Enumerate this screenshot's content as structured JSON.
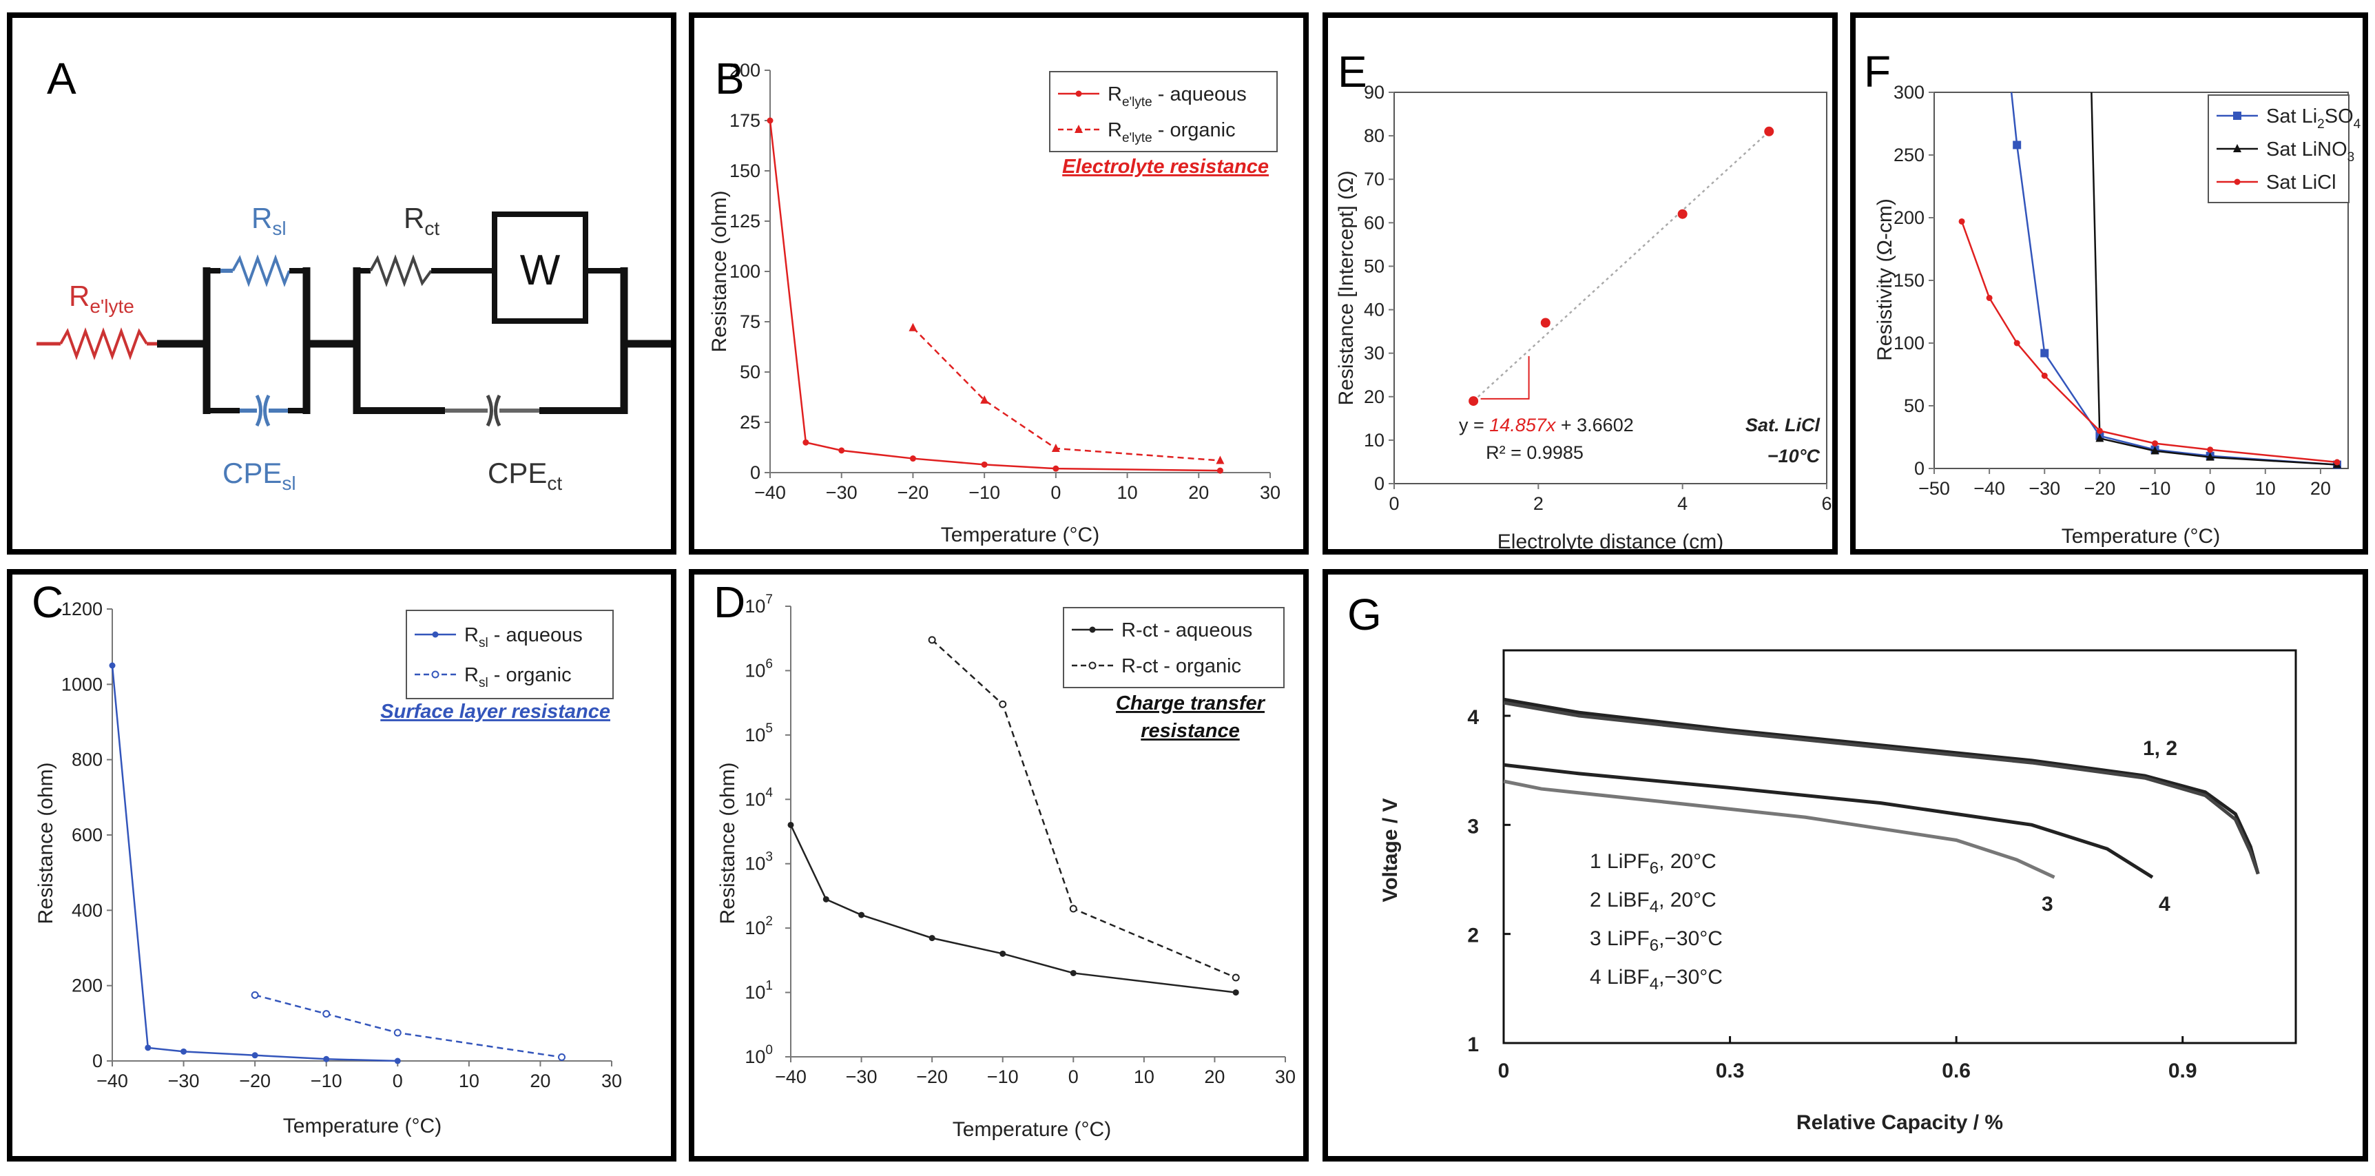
{
  "panel_labels": {
    "A": "A",
    "B": "B",
    "C": "C",
    "D": "D",
    "E": "E",
    "F": "F",
    "G": "G"
  },
  "circuit": {
    "r_elyte": {
      "main": "R",
      "sub": "e'lyte"
    },
    "r_sl": {
      "main": "R",
      "sub": "sl"
    },
    "cpe_sl": {
      "main": "CPE",
      "sub": "sl"
    },
    "r_ct": {
      "main": "R",
      "sub": "ct"
    },
    "w": "W",
    "cpe_ct": {
      "main": "CPE",
      "sub": "ct"
    },
    "colors": {
      "elyte": "#cc3333",
      "sl": "#4a7ab8",
      "ct": "#444444"
    }
  },
  "chart_data": [
    {
      "id": "B",
      "type": "line",
      "xlabel": "Temperature (°C)",
      "ylabel": "Resistance (ohm)",
      "xlim": [
        -40,
        30
      ],
      "xticks": [
        -40,
        -30,
        -20,
        -10,
        0,
        10,
        20,
        30
      ],
      "ylim": [
        0,
        200
      ],
      "yticks": [
        0,
        25,
        50,
        75,
        100,
        125,
        150,
        175,
        200
      ],
      "annotation": {
        "text": "Electrolyte resistance",
        "color": "#e02020"
      },
      "series": [
        {
          "name": "R",
          "name_sub": "e'lyte",
          "name_rest": " - aqueous",
          "color": "#e02020",
          "dash": false,
          "marker": "dot",
          "x": [
            -40,
            -35,
            -30,
            -20,
            -10,
            0,
            23
          ],
          "y": [
            175,
            15,
            11,
            7,
            4,
            2,
            1
          ]
        },
        {
          "name": "R",
          "name_sub": "e'lyte",
          "name_rest": " - organic",
          "color": "#e02020",
          "dash": true,
          "marker": "tri",
          "x": [
            -20,
            -10,
            0,
            23
          ],
          "y": [
            72,
            36,
            12,
            6
          ]
        }
      ]
    },
    {
      "id": "C",
      "type": "line",
      "xlabel": "Temperature (°C)",
      "ylabel": "Resistance (ohm)",
      "xlim": [
        -40,
        30
      ],
      "xticks": [
        -40,
        -30,
        -20,
        -10,
        0,
        10,
        20,
        30
      ],
      "ylim": [
        0,
        1200
      ],
      "yticks": [
        0,
        200,
        400,
        600,
        800,
        1000,
        1200
      ],
      "annotation": {
        "text": "Surface layer resistance",
        "color": "#3355bb"
      },
      "series": [
        {
          "name": "R",
          "name_sub": "sl",
          "name_rest": " - aqueous",
          "color": "#3355bb",
          "dash": false,
          "marker": "dot",
          "x": [
            -40,
            -35,
            -30,
            -20,
            -10,
            0
          ],
          "y": [
            1050,
            35,
            25,
            15,
            5,
            0
          ]
        },
        {
          "name": "R",
          "name_sub": "sl",
          "name_rest": " - organic",
          "color": "#3355bb",
          "dash": true,
          "marker": "circle",
          "x": [
            -20,
            -10,
            0,
            23
          ],
          "y": [
            175,
            125,
            75,
            10
          ]
        }
      ]
    },
    {
      "id": "D",
      "type": "line",
      "log": true,
      "xlabel": "Temperature (°C)",
      "ylabel": "Resistance (ohm)",
      "xlim": [
        -40,
        30
      ],
      "xticks": [
        -40,
        -30,
        -20,
        -10,
        0,
        10,
        20,
        30
      ],
      "ylim_exp": [
        0,
        7
      ],
      "yticks_exp": [
        0,
        1,
        2,
        3,
        4,
        5,
        6,
        7
      ],
      "annotation": {
        "text": "Charge transfer resistance",
        "line1": "Charge transfer",
        "line2": "resistance",
        "color": "#111111"
      },
      "series": [
        {
          "name": "R-ct - aqueous",
          "color": "#222222",
          "dash": false,
          "marker": "dot",
          "x": [
            -40,
            -35,
            -30,
            -20,
            -10,
            0,
            23
          ],
          "y": [
            4000,
            280,
            160,
            70,
            40,
            20,
            10
          ]
        },
        {
          "name": "R-ct - organic",
          "color": "#222222",
          "dash": true,
          "marker": "circle",
          "x": [
            -20,
            -10,
            0,
            23
          ],
          "y": [
            3000000,
            300000,
            200,
            17
          ]
        }
      ]
    },
    {
      "id": "E",
      "type": "scatter",
      "xlabel": "Electrolyte distance (cm)",
      "ylabel": "Resistance [Intercept]   (Ω)",
      "xlim": [
        0,
        6
      ],
      "xticks": [
        0,
        2,
        4,
        6
      ],
      "ylim": [
        0,
        90
      ],
      "yticks": [
        0,
        10,
        20,
        30,
        40,
        50,
        60,
        70,
        80,
        90
      ],
      "fit": {
        "prefix": "y = ",
        "slope": "14.857",
        "x_var": "x",
        "suffix": " + 3.6602",
        "r2": "R² = 0.9985"
      },
      "label_line1": "Sat. LiCl",
      "label_line2": "−10°C",
      "series": [
        {
          "name": "Sat. LiCl",
          "color": "#e02020",
          "x": [
            1.1,
            2.1,
            4.0,
            5.2
          ],
          "y": [
            19,
            37,
            62,
            81
          ]
        }
      ]
    },
    {
      "id": "F",
      "type": "line",
      "xlabel": "Temperature (°C)",
      "ylabel": "Resistivity (Ω-cm)",
      "xlim": [
        -50,
        25
      ],
      "xticks": [
        -50,
        -40,
        -30,
        -20,
        -10,
        0,
        10,
        20
      ],
      "ylim": [
        0,
        300
      ],
      "yticks": [
        0,
        50,
        100,
        150,
        200,
        250,
        300
      ],
      "series": [
        {
          "name": "Sat Li",
          "name_sub": "2",
          "name_rest": "SO",
          "name_sub2": "4",
          "color": "#3355bb",
          "marker": "square",
          "x": [
            -35,
            -30,
            -20,
            -10,
            0,
            23
          ],
          "y": [
            258,
            92,
            26,
            15,
            10,
            3
          ]
        },
        {
          "name": "Sat LiNO",
          "name_sub": "3",
          "name_rest": "",
          "color": "#111111",
          "marker": "tri",
          "x": [
            -20,
            -10,
            0,
            23
          ],
          "y": [
            24,
            14,
            9,
            3
          ]
        },
        {
          "name": "Sat LiCl",
          "color": "#e02020",
          "marker": "dot",
          "x": [
            -45,
            -40,
            -35,
            -30,
            -20,
            -10,
            0,
            23
          ],
          "y": [
            197,
            136,
            100,
            74,
            30,
            20,
            15,
            5
          ]
        }
      ]
    },
    {
      "id": "G",
      "type": "line",
      "xlabel": "Relative Capacity / %",
      "ylabel": "Voltage / V",
      "xlim": [
        0,
        1.05
      ],
      "xticks": [
        0,
        0.3,
        0.6,
        0.9
      ],
      "xtick_labels": [
        "0",
        "0.3",
        "0.6",
        "0.9"
      ],
      "ylim": [
        1,
        4.6
      ],
      "yticks": [
        1,
        2,
        3,
        4
      ],
      "legend": [
        {
          "num": "1",
          "salt": "LiPF",
          "sub": "6",
          "temp": ", 20°C"
        },
        {
          "num": "2",
          "salt": "LiBF",
          "sub": "4",
          "temp": ", 20°C"
        },
        {
          "num": "3",
          "salt": "LiPF",
          "sub": "6",
          "temp": ",−30°C"
        },
        {
          "num": "4",
          "salt": "LiBF",
          "sub": "4",
          "temp": ",−30°C"
        }
      ],
      "curve_labels": [
        "1, 2",
        "3",
        "4"
      ],
      "series": [
        {
          "name": "1",
          "color": "#222222",
          "x": [
            0,
            0.1,
            0.3,
            0.5,
            0.7,
            0.85,
            0.93,
            0.97,
            0.99,
            1.0
          ],
          "y": [
            4.15,
            4.03,
            3.87,
            3.73,
            3.59,
            3.45,
            3.3,
            3.1,
            2.8,
            2.55
          ]
        },
        {
          "name": "2",
          "color": "#444444",
          "x": [
            0,
            0.1,
            0.3,
            0.5,
            0.7,
            0.85,
            0.93,
            0.97,
            0.99,
            1.0
          ],
          "y": [
            4.12,
            4.0,
            3.85,
            3.71,
            3.57,
            3.43,
            3.27,
            3.05,
            2.75,
            2.55
          ]
        },
        {
          "name": "3",
          "color": "#777777",
          "x": [
            0,
            0.05,
            0.2,
            0.4,
            0.6,
            0.68,
            0.73
          ],
          "y": [
            3.4,
            3.33,
            3.22,
            3.07,
            2.86,
            2.68,
            2.52
          ]
        },
        {
          "name": "4",
          "color": "#222222",
          "x": [
            0,
            0.1,
            0.3,
            0.5,
            0.7,
            0.8,
            0.86
          ],
          "y": [
            3.55,
            3.47,
            3.34,
            3.2,
            3.0,
            2.78,
            2.52
          ]
        }
      ]
    }
  ]
}
